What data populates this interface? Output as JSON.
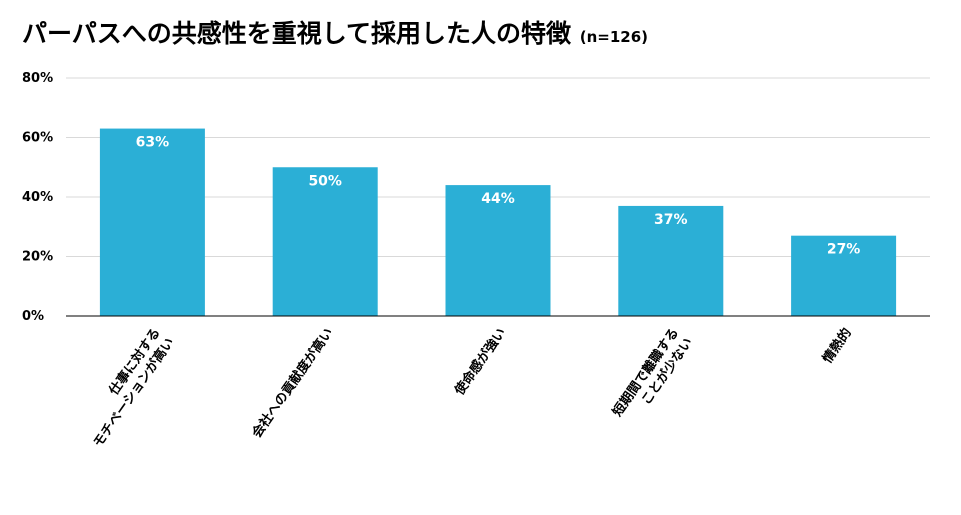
{
  "chart_data": {
    "type": "bar",
    "title": "パーパスへの共感性を重視して採用した人の特徴",
    "subtitle": "(n=126)",
    "categories": [
      [
        "仕事に対する",
        "モチベーションが高い"
      ],
      [
        "会社への貢献度が高い"
      ],
      [
        "使命感が強い"
      ],
      [
        "短期間で離職する",
        "ことが少ない"
      ],
      [
        "情熱的"
      ]
    ],
    "values": [
      63,
      50,
      44,
      37,
      27
    ],
    "data_labels": [
      "63%",
      "50%",
      "44%",
      "37%",
      "27%"
    ],
    "yticks": [
      "0%",
      "20%",
      "40%",
      "60%",
      "80%"
    ],
    "ylim": [
      0,
      80
    ],
    "grid": true,
    "legend": "none",
    "colors": {
      "bar": "#2BAFD6",
      "grid": "#D9D9D9",
      "axis": "#000000"
    }
  }
}
